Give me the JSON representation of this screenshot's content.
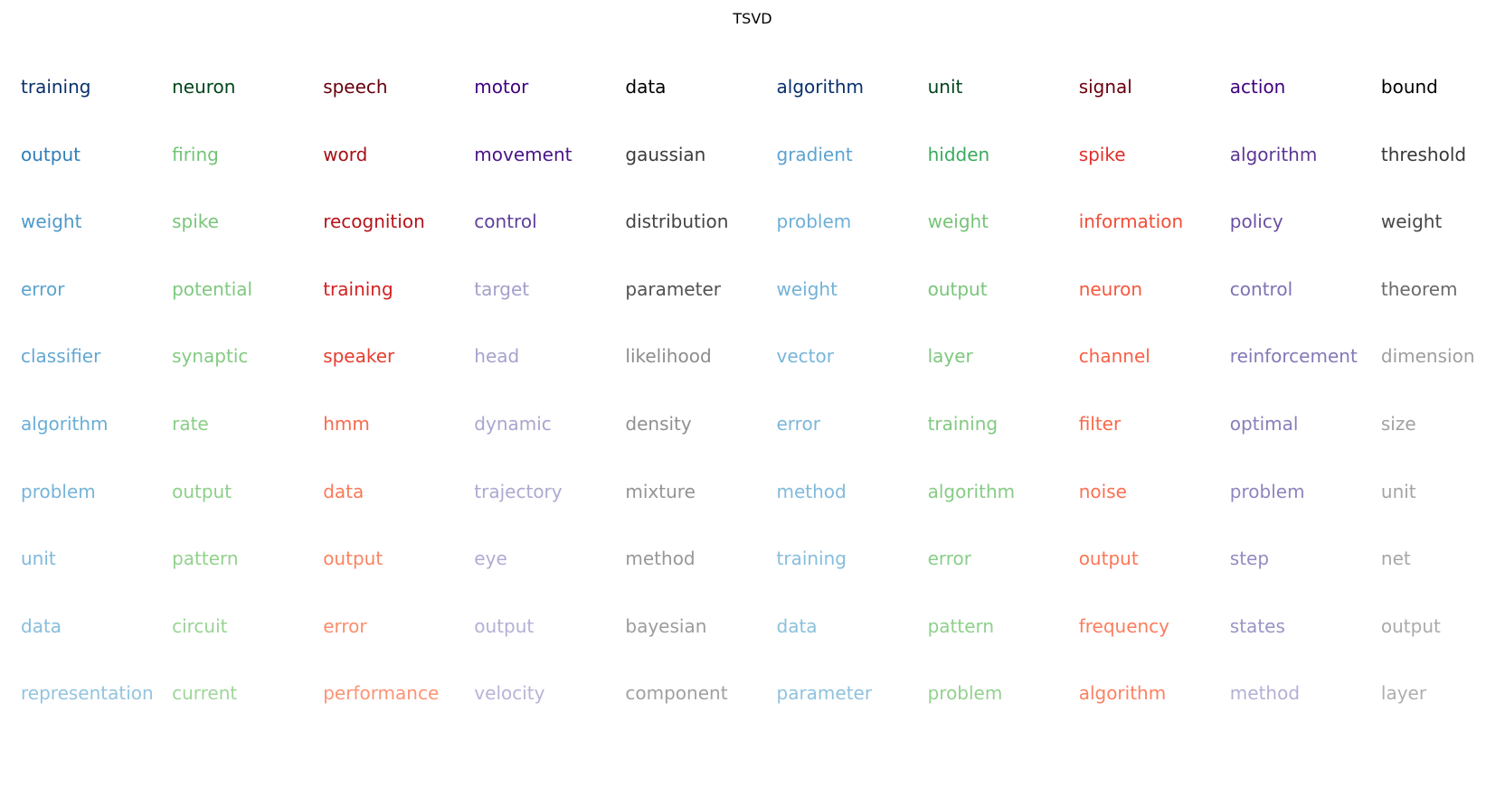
{
  "chart_data": {
    "type": "table",
    "title": "TSVD",
    "columns": [
      {
        "palette": "Blues",
        "words": [
          "training",
          "output",
          "weight",
          "error",
          "classifier",
          "algorithm",
          "problem",
          "unit",
          "data",
          "representation"
        ],
        "colors": [
          "#08306b",
          "#2f7ebc",
          "#4d99ca",
          "#5ba3d0",
          "#63a8d3",
          "#6aaed6",
          "#76b4d9",
          "#7fb9db",
          "#87bddc",
          "#93c4de"
        ]
      },
      {
        "palette": "Greens",
        "words": [
          "neuron",
          "firing",
          "spike",
          "potential",
          "synaptic",
          "rate",
          "output",
          "pattern",
          "circuit",
          "current"
        ],
        "colors": [
          "#00441b",
          "#73c476",
          "#79c67a",
          "#7fc97f",
          "#83cb82",
          "#89cd86",
          "#8ecf89",
          "#93d18c",
          "#98d394",
          "#a0d69b"
        ]
      },
      {
        "palette": "Reds",
        "words": [
          "speech",
          "word",
          "recognition",
          "training",
          "speaker",
          "hmm",
          "data",
          "output",
          "error",
          "performance"
        ],
        "colors": [
          "#67000d",
          "#a50f15",
          "#b6141a",
          "#d42020",
          "#e53d2f",
          "#f56a4d",
          "#f87a5a",
          "#fa8463",
          "#fb8d6b",
          "#fc9474"
        ]
      },
      {
        "palette": "Purples",
        "words": [
          "motor",
          "movement",
          "control",
          "target",
          "head",
          "dynamic",
          "trajectory",
          "eye",
          "output",
          "velocity"
        ],
        "colors": [
          "#3f007d",
          "#4a1486",
          "#5f409b",
          "#a39fcb",
          "#a6a2cd",
          "#a9a6cf",
          "#aca9d1",
          "#afacd3",
          "#b3b0d5",
          "#b7b4d7"
        ]
      },
      {
        "palette": "Greys",
        "words": [
          "data",
          "gaussian",
          "distribution",
          "parameter",
          "likelihood",
          "density",
          "mixture",
          "method",
          "bayesian",
          "component"
        ],
        "colors": [
          "#000000",
          "#3b3b3b",
          "#434343",
          "#525252",
          "#8c8c8c",
          "#909090",
          "#949494",
          "#989898",
          "#9c9c9c",
          "#a0a0a0"
        ]
      },
      {
        "palette": "Blues",
        "words": [
          "algorithm",
          "gradient",
          "problem",
          "weight",
          "vector",
          "error",
          "method",
          "training",
          "data",
          "parameter"
        ],
        "colors": [
          "#08306b",
          "#5ba3d0",
          "#6dafd7",
          "#72b2d8",
          "#77b5d9",
          "#7cb7da",
          "#81badb",
          "#86bddc",
          "#8bc0dd",
          "#90c2de"
        ]
      },
      {
        "palette": "Greens",
        "words": [
          "unit",
          "hidden",
          "weight",
          "output",
          "layer",
          "training",
          "algorithm",
          "error",
          "pattern",
          "problem"
        ],
        "colors": [
          "#00441b",
          "#3aaa5c",
          "#75c477",
          "#79c67a",
          "#7dc87e",
          "#82ca81",
          "#86cc85",
          "#8ace88",
          "#8fd08b",
          "#93d18e"
        ]
      },
      {
        "palette": "Reds",
        "words": [
          "signal",
          "spike",
          "information",
          "neuron",
          "channel",
          "filter",
          "noise",
          "output",
          "frequency",
          "algorithm"
        ],
        "colors": [
          "#67000d",
          "#e32f27",
          "#f24d37",
          "#f6583e",
          "#f86044",
          "#f8694b",
          "#fa7052",
          "#fb7757",
          "#fb7d5d",
          "#fc8262"
        ]
      },
      {
        "palette": "Purples",
        "words": [
          "action",
          "algorithm",
          "policy",
          "control",
          "reinforcement",
          "optimal",
          "problem",
          "step",
          "states",
          "method"
        ],
        "colors": [
          "#3f007d",
          "#5b3794",
          "#6a51a3",
          "#7d72b4",
          "#8279b8",
          "#877fbb",
          "#8d86bf",
          "#928cc2",
          "#9894c6",
          "#b3b0d5"
        ]
      },
      {
        "palette": "Greys",
        "words": [
          "bound",
          "threshold",
          "weight",
          "theorem",
          "dimension",
          "size",
          "unit",
          "net",
          "output",
          "layer"
        ],
        "colors": [
          "#000000",
          "#383838",
          "#474747",
          "#6a6a6a",
          "#9e9e9e",
          "#a1a1a1",
          "#a4a4a4",
          "#a7a7a7",
          "#aaaaaa",
          "#aeaeae"
        ]
      }
    ]
  }
}
